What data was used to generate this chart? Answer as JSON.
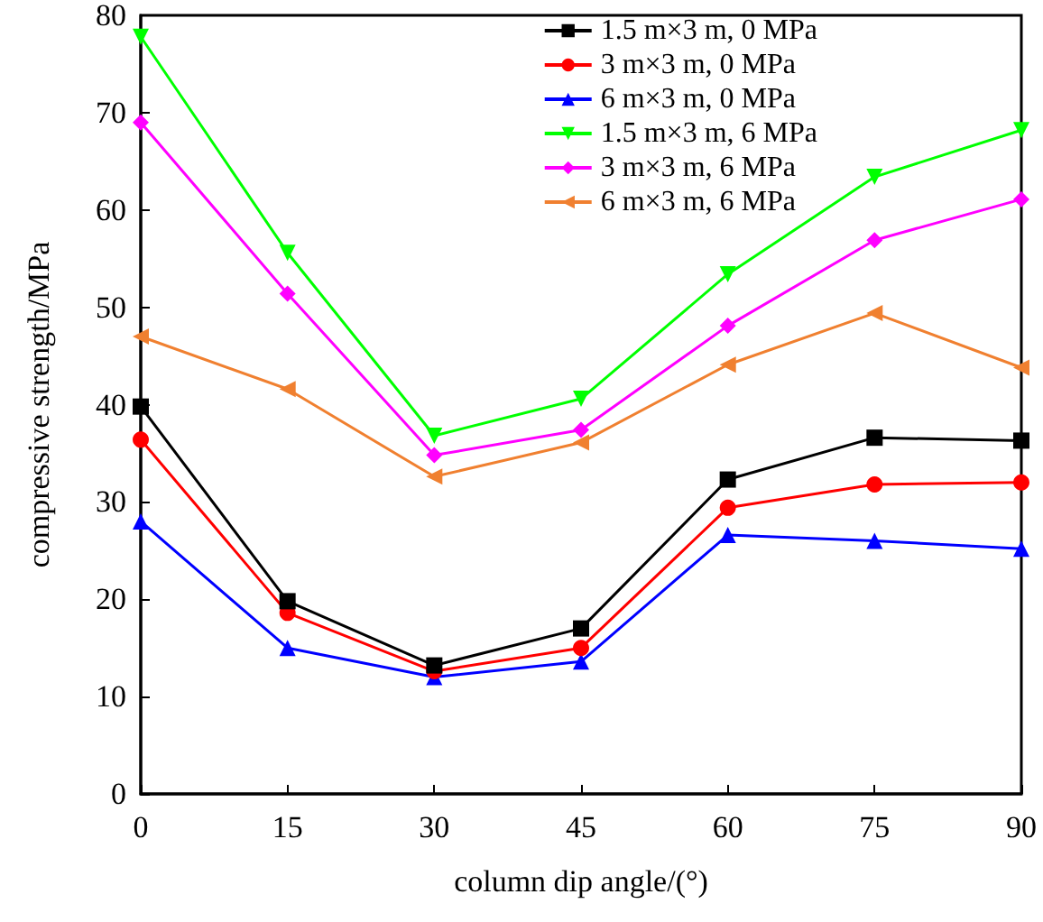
{
  "chart_data": {
    "type": "line",
    "xlabel": "column dip angle/(°)",
    "ylabel": "compressive strength/MPa",
    "x": [
      0,
      15,
      30,
      45,
      60,
      75,
      90
    ],
    "xlim": [
      0,
      90
    ],
    "xticks": [
      0,
      15,
      30,
      45,
      60,
      75,
      90
    ],
    "ylim": [
      0,
      80
    ],
    "yticks": [
      0,
      10,
      20,
      30,
      40,
      50,
      60,
      70,
      80
    ],
    "grid": false,
    "legend": "top right",
    "line_style": "solid",
    "series": [
      {
        "name": "1.5 m×3 m, 0 MPa",
        "color": "#000000",
        "marker": "square",
        "values": [
          39.8,
          19.8,
          13.2,
          17,
          32.3,
          36.6,
          36.3
        ]
      },
      {
        "name": "3 m×3 m, 0 MPa",
        "color": "#ff0000",
        "marker": "circle",
        "values": [
          36.4,
          18.6,
          12.6,
          15,
          29.4,
          31.8,
          32
        ]
      },
      {
        "name": "6 m×3 m, 0 MPa",
        "color": "#0000ff",
        "marker": "triangle",
        "values": [
          28,
          15,
          12,
          13.6,
          26.6,
          26,
          25.2
        ]
      },
      {
        "name": "1.5 m×3 m, 6 MPa",
        "color": "#00ff00",
        "marker": "triangle-down",
        "values": [
          77.8,
          55.6,
          36.8,
          40.6,
          53.4,
          63.4,
          68.2
        ]
      },
      {
        "name": "3 m×3 m, 6 MPa",
        "color": "#ff00ff",
        "marker": "diamond",
        "values": [
          69,
          51.4,
          34.8,
          37.4,
          48.1,
          56.9,
          61.1
        ]
      },
      {
        "name": "6 m×3 m, 6 MPa",
        "color": "#f08030",
        "marker": "triangle-left",
        "values": [
          47,
          41.6,
          32.6,
          36.1,
          44.1,
          49.4,
          43.8
        ]
      }
    ]
  }
}
